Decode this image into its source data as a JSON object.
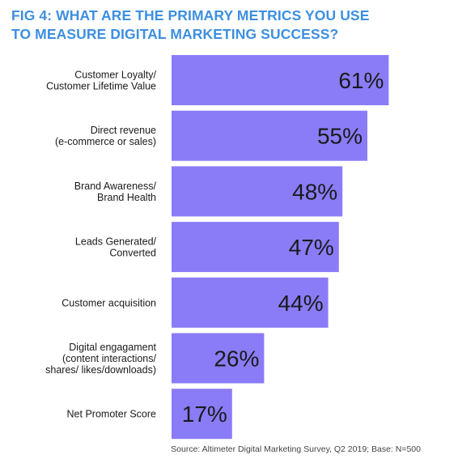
{
  "title_lines": [
    "FIG 4: WHAT ARE THE PRIMARY METRICS YOU USE",
    "TO MEASURE DIGITAL MARKETING SUCCESS?"
  ],
  "source": "Source: Altimeter Digital Marketing Survey, Q2 2019; Base: N=500",
  "colors": {
    "bar": "#8a7cf7",
    "title": "#3d8fe0",
    "text": "#1a1a1a"
  },
  "chart_data": {
    "type": "bar",
    "orientation": "horizontal",
    "title": "FIG 4: WHAT ARE THE PRIMARY METRICS YOU USE TO MEASURE DIGITAL MARKETING SUCCESS?",
    "categories": [
      [
        "Customer Loyalty/",
        "Customer Lifetime Value"
      ],
      [
        "Direct revenue",
        "(e-commerce or sales)"
      ],
      [
        "Brand Awareness/",
        "Brand Health"
      ],
      [
        "Leads Generated/",
        "Converted"
      ],
      [
        "Customer acquisition"
      ],
      [
        "Digital engagament",
        "(content interactions/",
        "shares/ likes/downloads)"
      ],
      [
        "Net Promoter Score"
      ]
    ],
    "values": [
      61,
      55,
      48,
      47,
      44,
      26,
      17
    ],
    "value_labels": [
      "61%",
      "55%",
      "48%",
      "47%",
      "44%",
      "26%",
      "17%"
    ],
    "unit": "%",
    "grid": false,
    "legend": "none"
  }
}
